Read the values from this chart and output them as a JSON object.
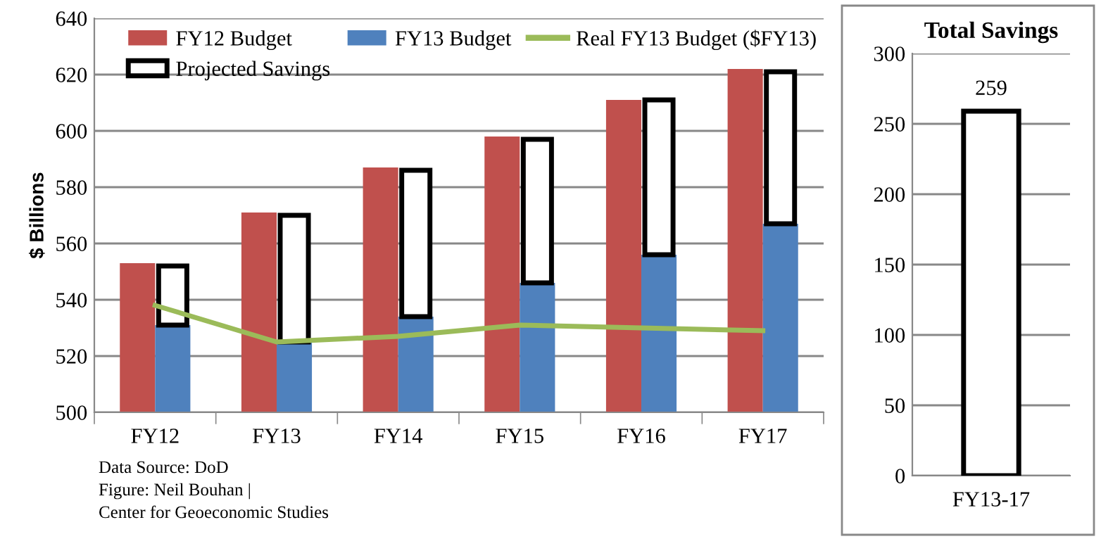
{
  "chart_data": [
    {
      "type": "bar",
      "ylabel": "$ Billions",
      "categories": [
        "FY12",
        "FY13",
        "FY14",
        "FY15",
        "FY16",
        "FY17"
      ],
      "series": [
        {
          "name": "FY12 Budget",
          "color": "#c0504d",
          "values": [
            553,
            571,
            587,
            598,
            611,
            622
          ]
        },
        {
          "name": "FY13 Budget",
          "color": "#4f81bd",
          "values": [
            531,
            525,
            534,
            546,
            556,
            567
          ]
        },
        {
          "name": "Real FY13 Budget ($FY13)",
          "type": "line",
          "color": "#9bbb59",
          "values": [
            538,
            525,
            527,
            531,
            530,
            529
          ]
        },
        {
          "name": "Projected Savings",
          "color": "#ffffff",
          "base": [
            531,
            525,
            534,
            546,
            556,
            567
          ],
          "values": [
            21,
            45,
            52,
            51,
            55,
            54
          ]
        }
      ],
      "ylim": [
        500,
        640
      ],
      "yticks": [
        500,
        520,
        540,
        560,
        580,
        600,
        620,
        640
      ],
      "grid": "y",
      "legend": "top",
      "annotations": [
        "Data Source: DoD",
        "Figure: Neil Bouhan |",
        "Center for Geoeconomic Studies"
      ]
    },
    {
      "type": "bar",
      "title": "Total Savings",
      "categories": [
        "FY13-17"
      ],
      "values": [
        259
      ],
      "color": "#ffffff",
      "data_labels": true,
      "ylim": [
        0,
        300
      ],
      "yticks": [
        0,
        50,
        100,
        150,
        200,
        250,
        300
      ],
      "grid": "y"
    }
  ]
}
